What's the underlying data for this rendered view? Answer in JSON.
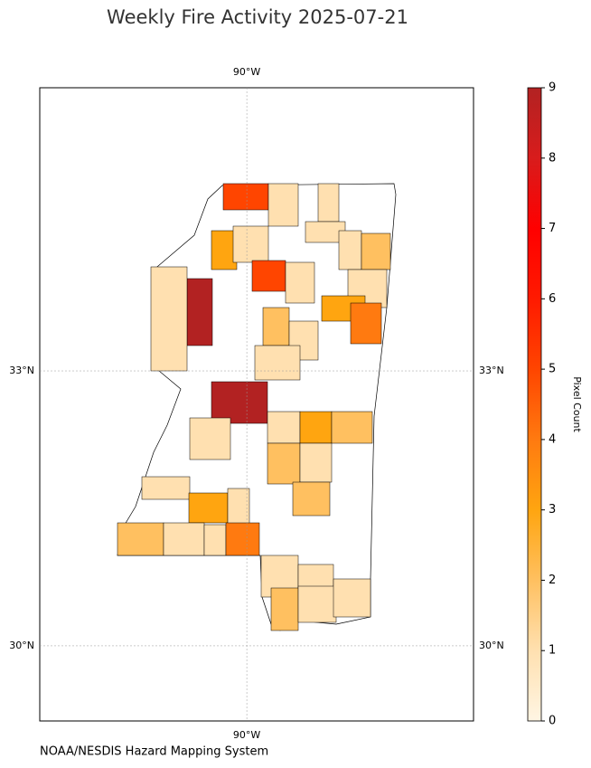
{
  "chart_data": {
    "type": "choropleth",
    "title": "Weekly Fire Activity 2025-07-21",
    "source": "NOAA/NESDIS Hazard Mapping System",
    "xlim": [
      -92.63,
      -87.12
    ],
    "ylim": [
      29.18,
      36.09
    ],
    "xticks": [
      {
        "value": -90,
        "label": "90°W"
      }
    ],
    "yticks": [
      {
        "value": 33,
        "label": "33°N"
      },
      {
        "value": 30,
        "label": "30°N"
      }
    ],
    "grid": true,
    "values": [
      5,
      1,
      1,
      1,
      1,
      2,
      3,
      1,
      5,
      1,
      1,
      3,
      4,
      9,
      1,
      2,
      1,
      1,
      9,
      1,
      3,
      2,
      2,
      1,
      1,
      1,
      3,
      1,
      2,
      2,
      1,
      1,
      4,
      1,
      2,
      1,
      1,
      1
    ],
    "colorbar": {
      "label": "Pixel Count",
      "lim": [
        0,
        9
      ],
      "ticks": [
        0,
        1,
        2,
        3,
        4,
        5,
        6,
        7,
        8,
        9
      ],
      "colors": [
        "#fff5e3",
        "#ffe0b0",
        "#ffc060",
        "#ffa510",
        "#ff7a10",
        "#ff4500",
        "#ff1a00",
        "#ff0000",
        "#d81c1c",
        "#b22222"
      ]
    }
  }
}
